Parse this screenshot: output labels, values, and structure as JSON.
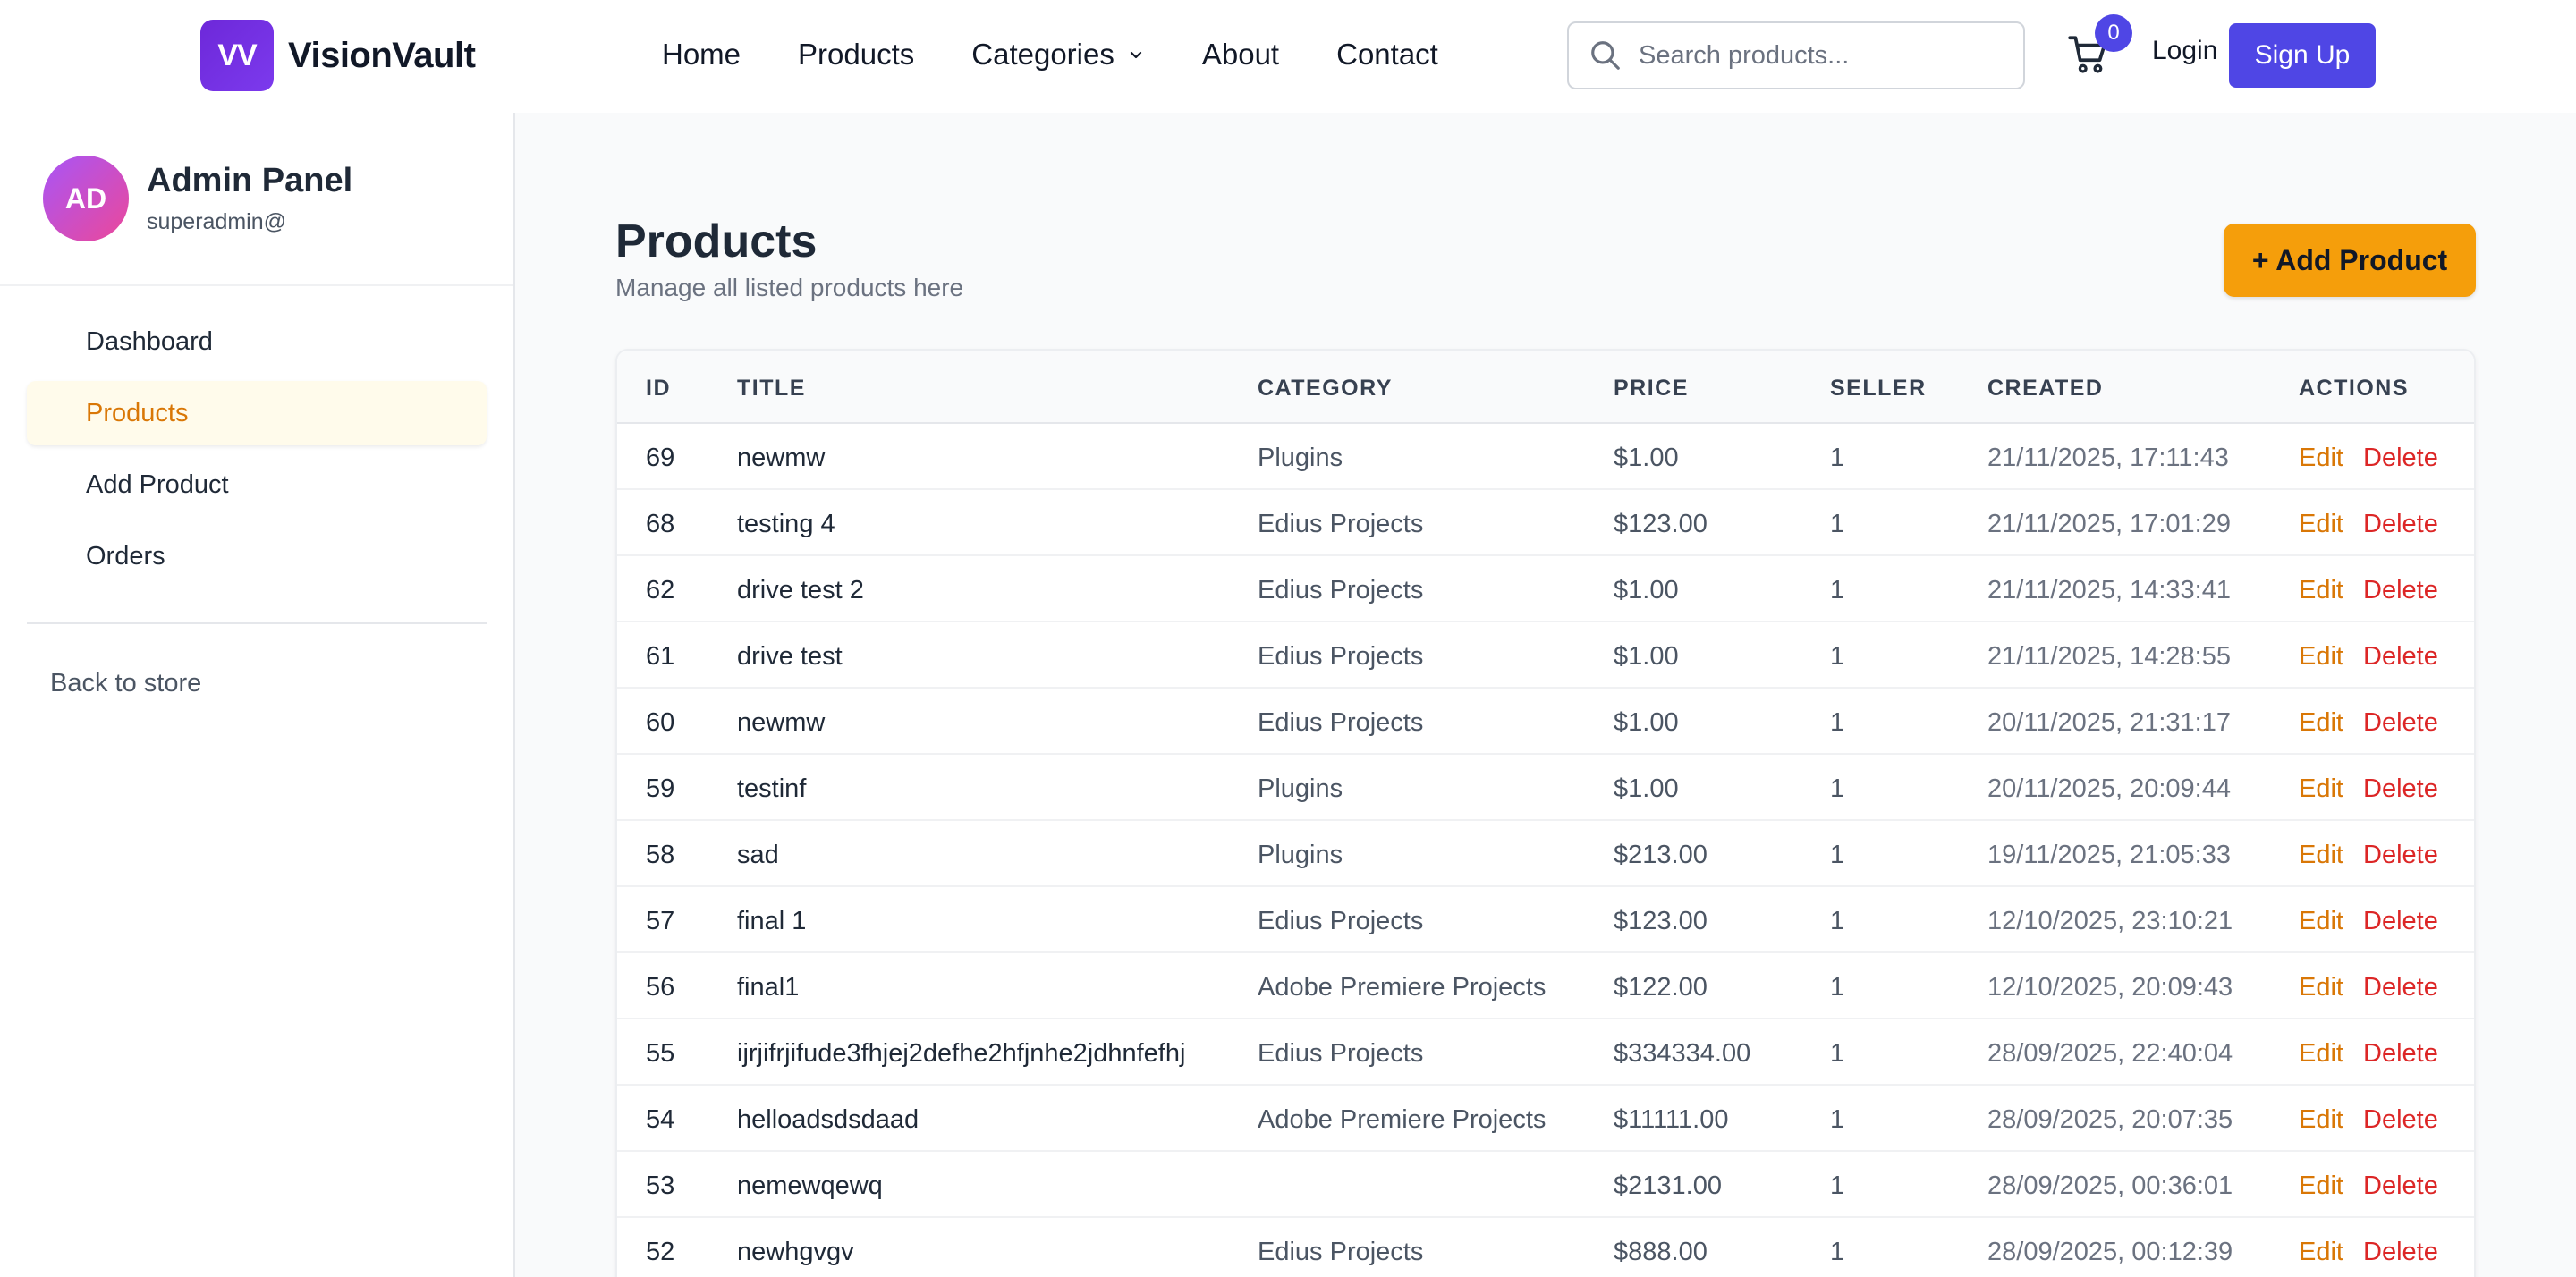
{
  "header": {
    "logo_mark": "VV",
    "logo_text": "VisionVault",
    "nav": [
      "Home",
      "Products",
      "Categories",
      "About",
      "Contact"
    ],
    "search_placeholder": "Search products...",
    "cart_count": "0",
    "login_label": "Login",
    "signup_label": "Sign Up",
    "icons": {
      "search": "search-icon",
      "cart": "cart-icon",
      "dropdown": "chevron-down-icon"
    }
  },
  "sidebar": {
    "avatar_initials": "AD",
    "title": "Admin Panel",
    "subtitle": "superadmin@",
    "items": [
      "Dashboard",
      "Products",
      "Add Product",
      "Orders"
    ],
    "active_item": "Products",
    "back_label": "Back to store"
  },
  "main": {
    "title": "Products",
    "subtitle": "Manage all listed products here",
    "add_button_label": "+ Add Product",
    "columns": [
      "ID",
      "TITLE",
      "CATEGORY",
      "PRICE",
      "SELLER",
      "CREATED",
      "ACTIONS"
    ],
    "edit_label": "Edit",
    "delete_label": "Delete",
    "rows": [
      {
        "id": "69",
        "title": "newmw",
        "category": "Plugins",
        "price": "$1.00",
        "seller": "1",
        "created": "21/11/2025, 17:11:43"
      },
      {
        "id": "68",
        "title": "testing 4",
        "category": "Edius Projects",
        "price": "$123.00",
        "seller": "1",
        "created": "21/11/2025, 17:01:29"
      },
      {
        "id": "62",
        "title": "drive test 2",
        "category": "Edius Projects",
        "price": "$1.00",
        "seller": "1",
        "created": "21/11/2025, 14:33:41"
      },
      {
        "id": "61",
        "title": "drive test",
        "category": "Edius Projects",
        "price": "$1.00",
        "seller": "1",
        "created": "21/11/2025, 14:28:55"
      },
      {
        "id": "60",
        "title": "newmw",
        "category": "Edius Projects",
        "price": "$1.00",
        "seller": "1",
        "created": "20/11/2025, 21:31:17"
      },
      {
        "id": "59",
        "title": "testinf",
        "category": "Plugins",
        "price": "$1.00",
        "seller": "1",
        "created": "20/11/2025, 20:09:44"
      },
      {
        "id": "58",
        "title": "sad",
        "category": "Plugins",
        "price": "$213.00",
        "seller": "1",
        "created": "19/11/2025, 21:05:33"
      },
      {
        "id": "57",
        "title": "final 1",
        "category": "Edius Projects",
        "price": "$123.00",
        "seller": "1",
        "created": "12/10/2025, 23:10:21"
      },
      {
        "id": "56",
        "title": "final1",
        "category": "Adobe Premiere Projects",
        "price": "$122.00",
        "seller": "1",
        "created": "12/10/2025, 20:09:43"
      },
      {
        "id": "55",
        "title": "ijrjifrjifude3fhjej2defhe2hfjnhe2jdhnfefhj",
        "category": "Edius Projects",
        "price": "$334334.00",
        "seller": "1",
        "created": "28/09/2025, 22:40:04"
      },
      {
        "id": "54",
        "title": "helloadsdsdaad",
        "category": "Adobe Premiere Projects",
        "price": "$11111.00",
        "seller": "1",
        "created": "28/09/2025, 20:07:35"
      },
      {
        "id": "53",
        "title": "nemewqewq",
        "category": "",
        "price": "$2131.00",
        "seller": "1",
        "created": "28/09/2025, 00:36:01"
      },
      {
        "id": "52",
        "title": "newhgvgv",
        "category": "Edius Projects",
        "price": "$888.00",
        "seller": "1",
        "created": "28/09/2025, 00:12:39"
      }
    ]
  }
}
